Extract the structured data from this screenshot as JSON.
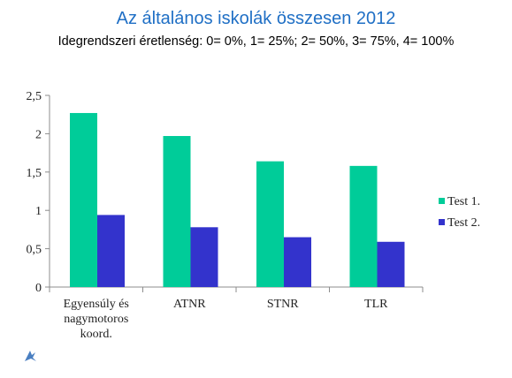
{
  "chart_data": {
    "type": "bar",
    "title": "Az általános iskolák összesen 2012",
    "subtitle": "Idegrendszeri éretlenség: 0= 0%, 1= 25%; 2= 50%, 3= 75%, 4= 100%",
    "categories": [
      [
        "Egyensúly és",
        "nagymotoros",
        "koord."
      ],
      [
        "ATNR"
      ],
      [
        "STNR"
      ],
      [
        "TLR"
      ]
    ],
    "series": [
      {
        "name": "Test 1.",
        "color": "#00cc99",
        "values": [
          2.27,
          1.97,
          1.64,
          1.58
        ]
      },
      {
        "name": "Test 2.",
        "color": "#3333cc",
        "values": [
          0.94,
          0.78,
          0.65,
          0.59
        ]
      }
    ],
    "yticks": [
      "0",
      "0,5",
      "1",
      "1,5",
      "2",
      "2,5"
    ],
    "ylim": [
      0,
      2.5
    ],
    "legend_position": "right",
    "grid": false
  }
}
